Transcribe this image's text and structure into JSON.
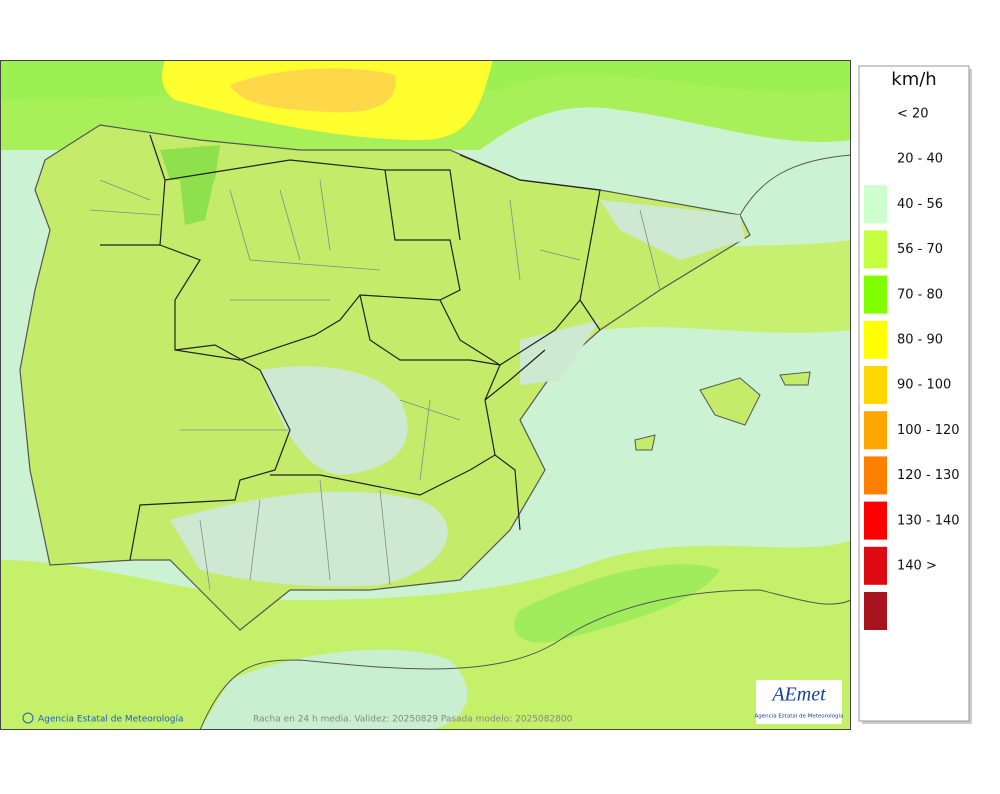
{
  "legend": {
    "unit": "km/h",
    "items": [
      {
        "label": "< 20"
      },
      {
        "label": "20 - 40",
        "color": "#ccffcc"
      },
      {
        "label": "40 - 56",
        "color": "#c4ff40"
      },
      {
        "label": "56 - 70",
        "color": "#7fff00"
      },
      {
        "label": "70 - 80",
        "color": "#ffff00"
      },
      {
        "label": "80 - 90",
        "color": "#ffd700"
      },
      {
        "label": "90 - 100",
        "color": "#ffa500"
      },
      {
        "label": "100 - 120",
        "color": "#ff8000"
      },
      {
        "label": "120 - 130",
        "color": "#ff0000"
      },
      {
        "label": "130 - 140",
        "color": "#dd0a14"
      },
      {
        "label": "140 >",
        "color": "#a8141e"
      }
    ]
  },
  "footer": {
    "credit": "Agencia Estatal de Meteorología",
    "caption": "Racha en 24 h media. Validez: 20250829 Pasada modelo: 2025082800"
  },
  "logo": {
    "name": "AEmet",
    "subtitle": "Agencia Estatal de Meteorología"
  }
}
